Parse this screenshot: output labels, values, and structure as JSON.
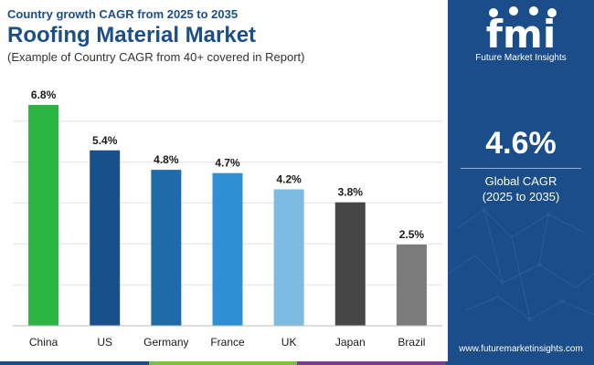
{
  "header": {
    "kicker": "Country growth CAGR from 2025 to 2035",
    "title": "Roofing Material Market",
    "note": "(Example of Country CAGR from 40+ covered in Report)"
  },
  "chart_data": {
    "type": "bar",
    "title": "Roofing Material Market",
    "categories": [
      "China",
      "US",
      "Germany",
      "France",
      "UK",
      "Japan",
      "Brazil"
    ],
    "values": [
      6.8,
      5.4,
      4.8,
      4.7,
      4.2,
      3.8,
      2.5
    ],
    "value_labels": [
      "6.8%",
      "5.4%",
      "4.8%",
      "4.7%",
      "4.2%",
      "3.8%",
      "2.5%"
    ],
    "colors": [
      "#2ab542",
      "#17508a",
      "#1f6aa8",
      "#2f8fd5",
      "#7ebbe3",
      "#464646",
      "#7b7b7b"
    ],
    "ylim": [
      0,
      7.5
    ],
    "grid": true,
    "xlabel": "",
    "ylabel": ""
  },
  "sidebar": {
    "logo_mark": "fmi",
    "logo_text": "Future Market Insights",
    "cagr_value": "4.6%",
    "cagr_label_1": "Global CAGR",
    "cagr_label_2": "(2025 to 2035)",
    "website": "www.futuremarketinsights.com"
  },
  "theme": {
    "title_color": "#1b4f8a",
    "sidebar_color": "#1a4d8a",
    "footer_colors": [
      "#1a4d8a",
      "#7cc043",
      "#7a3d8f",
      "#1a4d8a"
    ]
  }
}
